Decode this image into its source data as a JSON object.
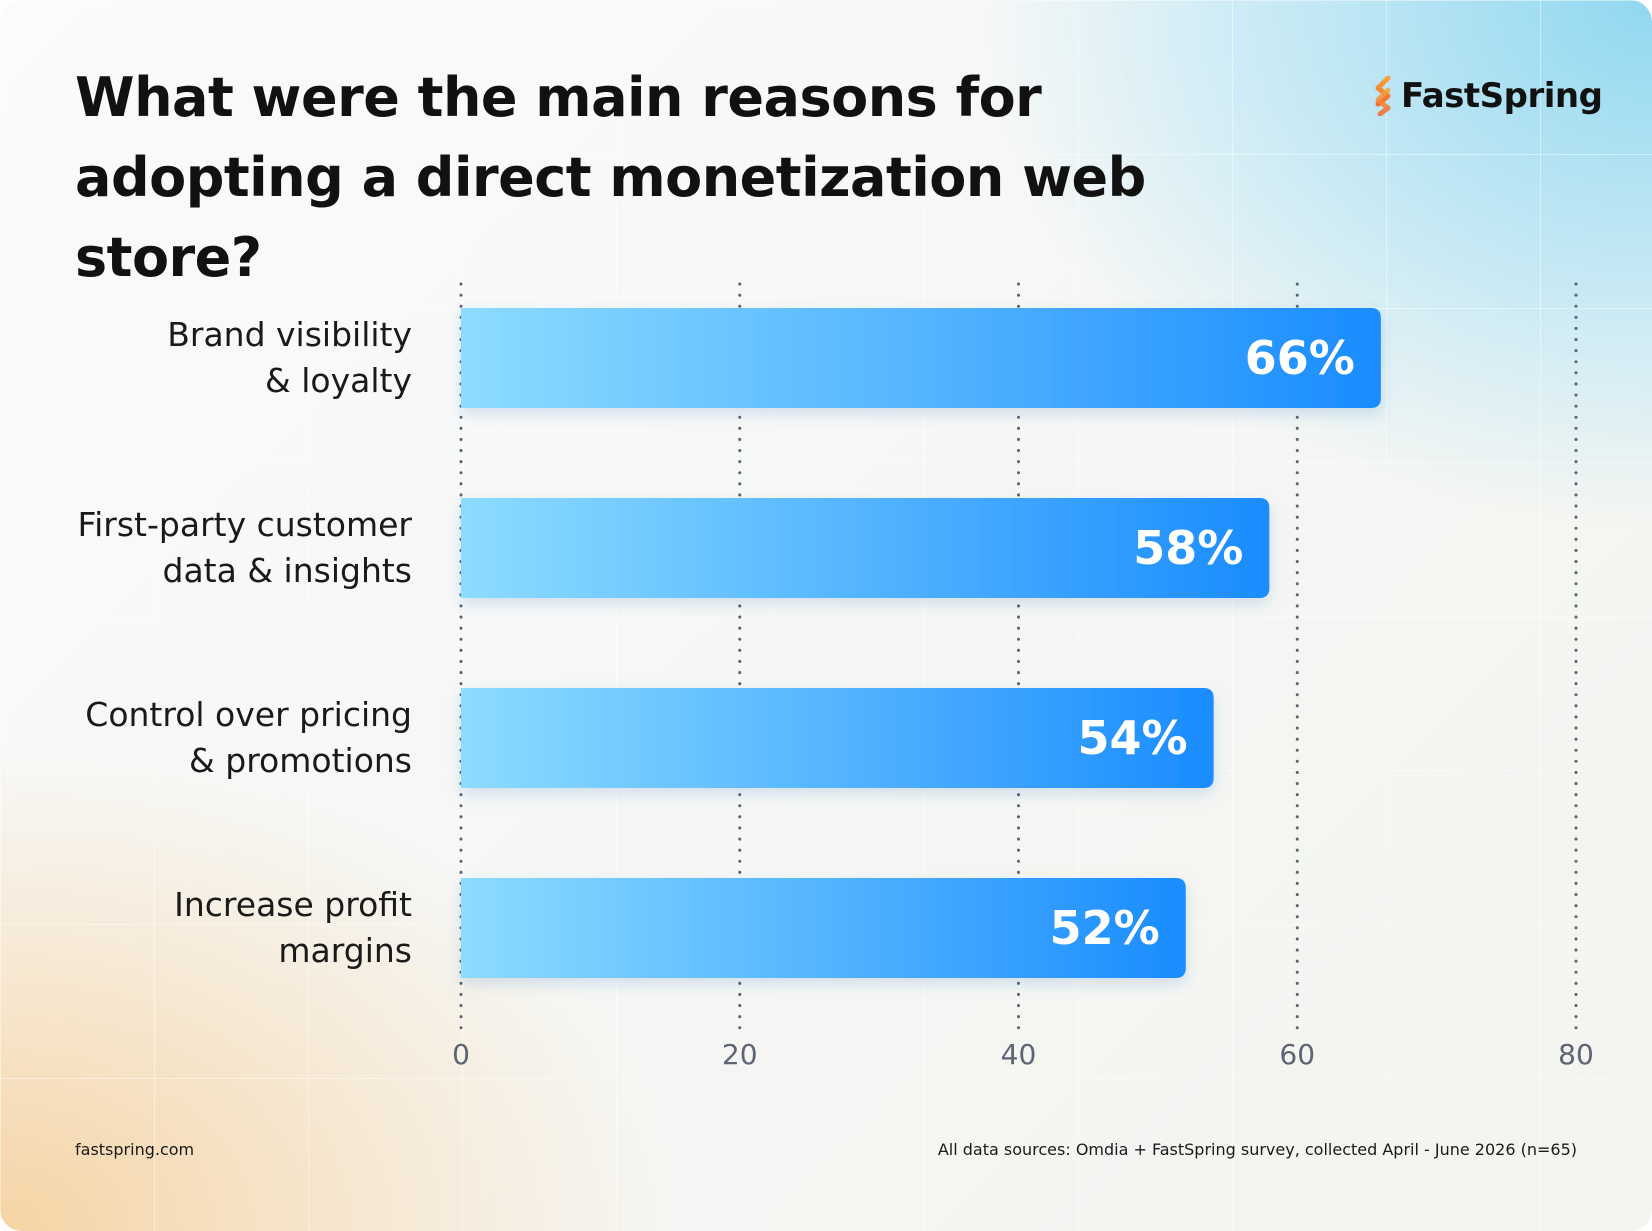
{
  "title": "What were the main reasons for adopting a direct monetization web store?",
  "brand": {
    "name": "FastSpring",
    "mark_icon": "fastspring-logo-icon",
    "mark_color_top": "#f7a23a",
    "mark_color_bottom": "#f26b2c"
  },
  "chart_data": {
    "type": "bar",
    "orientation": "horizontal",
    "title": "What were the main reasons for adopting a direct monetization web store?",
    "categories": [
      "Brand visibility & loyalty",
      "First-party customer data & insights",
      "Control over pricing & promotions",
      "Increase profit margins"
    ],
    "category_lines": [
      [
        "Brand visibility",
        "& loyalty"
      ],
      [
        "First-party customer",
        "data & insights"
      ],
      [
        "Control over pricing",
        "& promotions"
      ],
      [
        "Increase profit",
        "margins"
      ]
    ],
    "values": [
      66,
      58,
      54,
      52
    ],
    "data_labels": [
      "66%",
      "58%",
      "54%",
      "52%"
    ],
    "xlim": [
      0,
      80
    ],
    "xticks": [
      0,
      20,
      40,
      60,
      80
    ],
    "xtick_labels": [
      "0",
      "20",
      "40",
      "60",
      "80"
    ],
    "grid": "vertical dotted",
    "bar_gradient": [
      "#8ddcff",
      "#1a8cff"
    ]
  },
  "footer": {
    "site": "fastspring.com",
    "source": "All data sources: Omdia + FastSpring survey, collected April - June 2026 (n=65)"
  }
}
